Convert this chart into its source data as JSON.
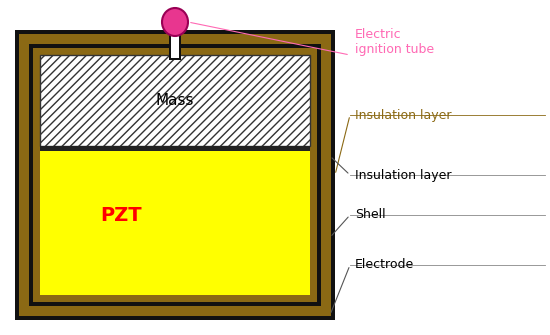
{
  "bg_color": "#ffffff",
  "outer_shell_color": "#8B6914",
  "black_color": "#111111",
  "pzt_color": "#FFFF00",
  "mass_bg_color": "#f0f0f0",
  "ignition_color": "#E8368F",
  "label_electric": "Electric\nignition tube",
  "label_electric_color": "#FF69B4",
  "label_insulation_top": "Insulation layer",
  "label_insulation_top_color": "#8B6914",
  "label_insulation": "Insulation layer",
  "label_insulation_color": "#000000",
  "label_shell": "Shell",
  "label_shell_color": "#000000",
  "label_electrode": "Electrode",
  "label_electrode_color": "#000000",
  "label_pzt": "PZT",
  "label_pzt_color": "#FF0000",
  "label_mass": "Mass",
  "label_mass_color": "#000000",
  "fig_width": 5.5,
  "fig_height": 3.35,
  "dpi": 100
}
